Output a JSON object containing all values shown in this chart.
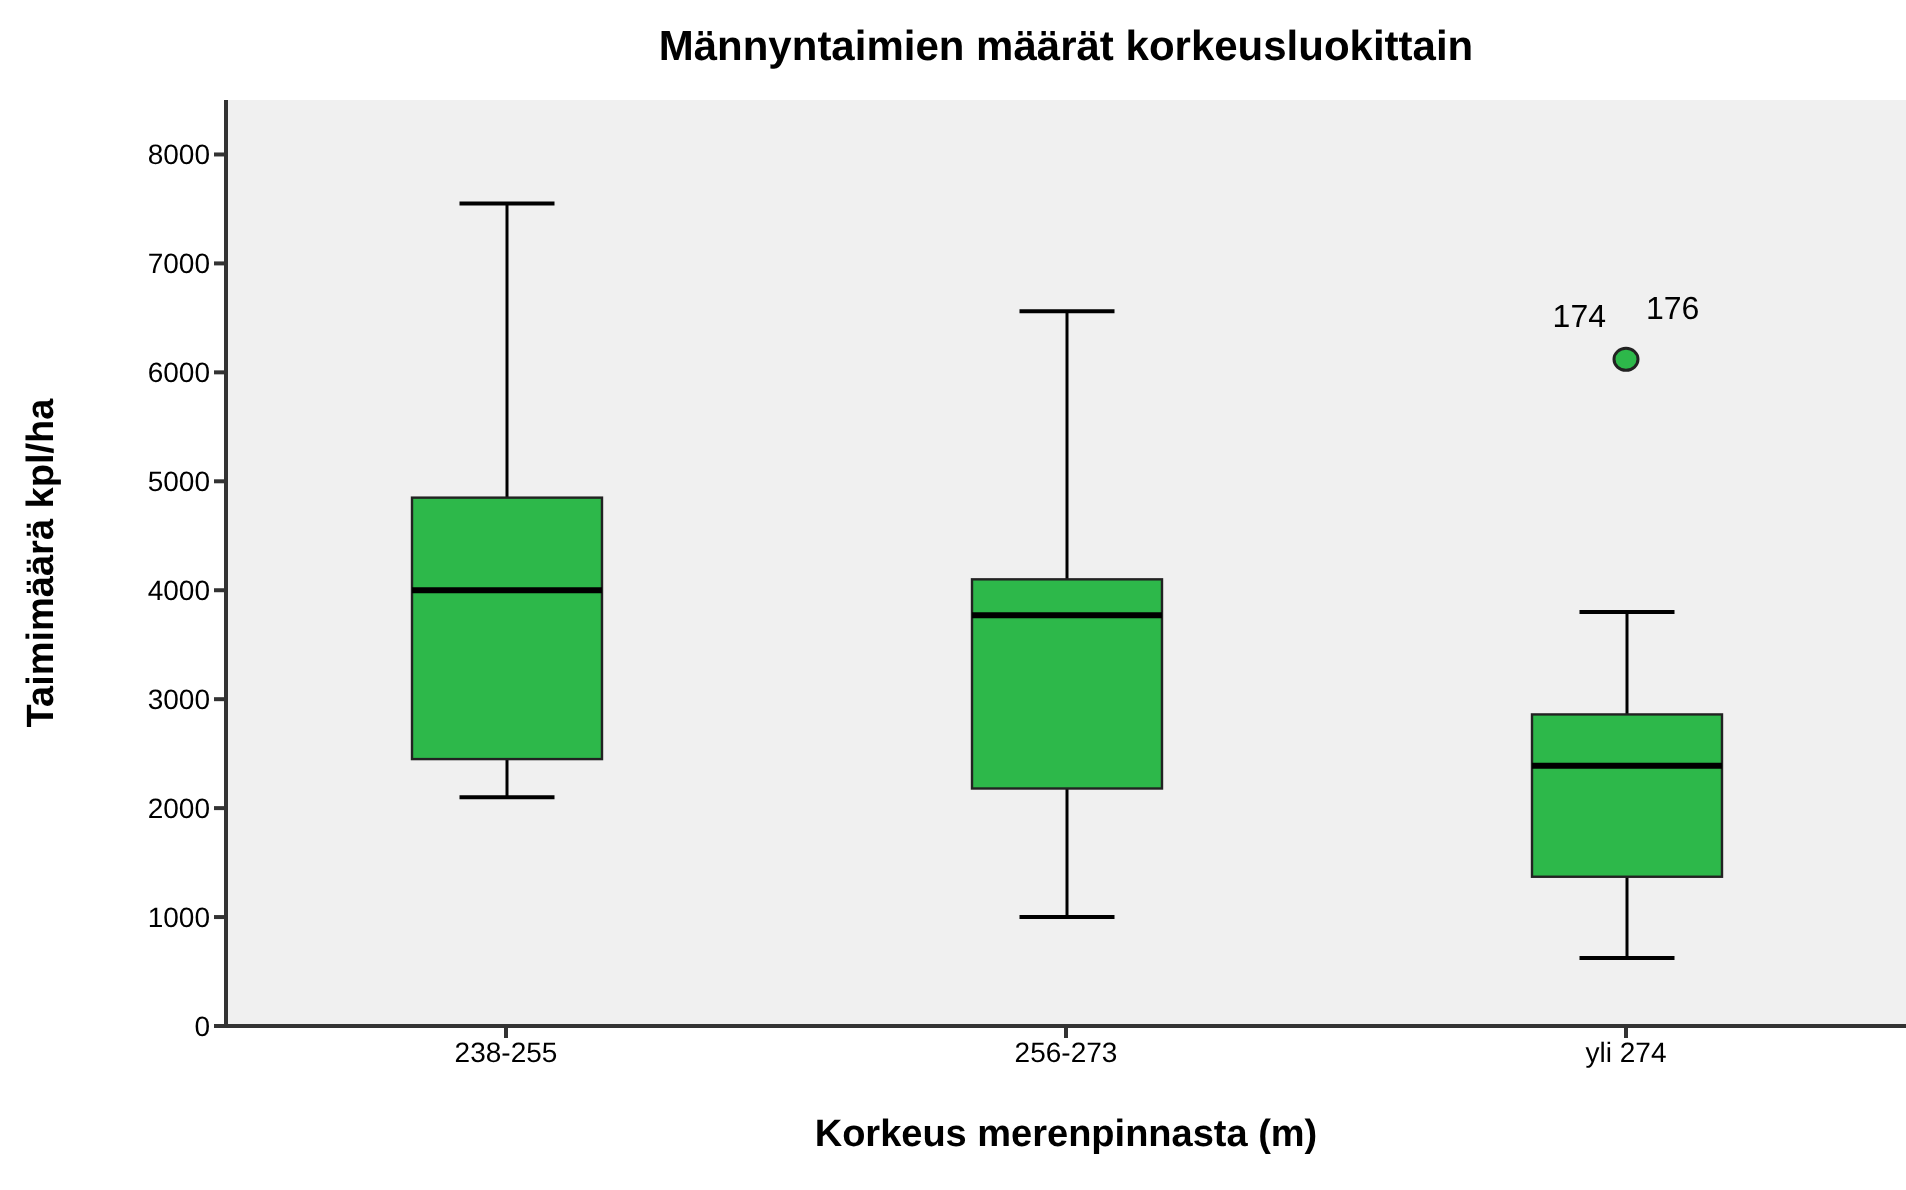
{
  "chart_data": {
    "type": "box",
    "title": "Männyntaimien määrät korkeusluokittain",
    "xlabel": "Korkeus merenpinnasta (m)",
    "ylabel": "Taimimäärä kpl/ha",
    "categories": [
      "238-255",
      "256-273",
      "yli 274"
    ],
    "color": "#2db84a",
    "boxes": [
      {
        "low": 2100,
        "q1": 2450,
        "median": 4000,
        "q3": 4850,
        "high": 7550
      },
      {
        "low": 1000,
        "q1": 2180,
        "median": 3770,
        "q3": 4100,
        "high": 6560
      },
      {
        "low": 625,
        "q1": 1370,
        "median": 2390,
        "q3": 2860,
        "high": 3800,
        "outliers": [
          6120
        ]
      }
    ],
    "ylim": [
      0,
      8500
    ],
    "yticks": [
      0,
      1000,
      2000,
      3000,
      4000,
      5000,
      6000,
      7000,
      8000
    ],
    "annotations": [
      "174",
      "176"
    ]
  }
}
